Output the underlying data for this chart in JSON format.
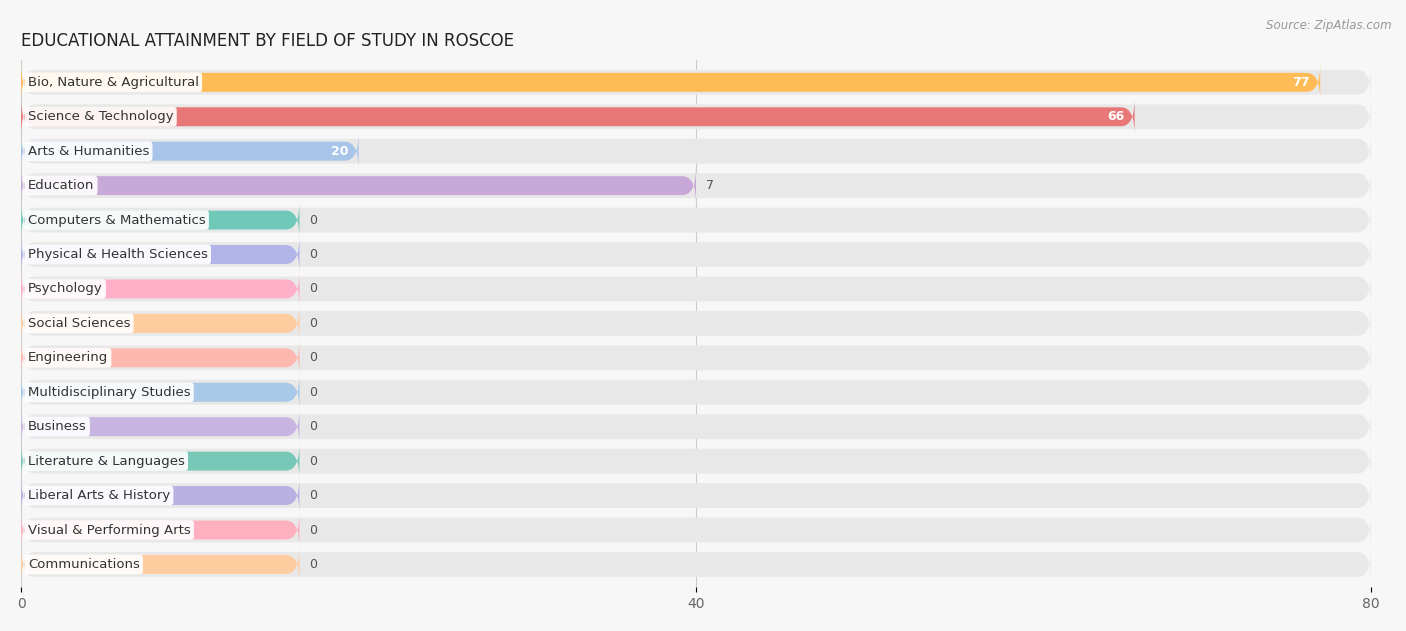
{
  "title": "EDUCATIONAL ATTAINMENT BY FIELD OF STUDY IN ROSCOE",
  "source": "Source: ZipAtlas.com",
  "categories": [
    "Bio, Nature & Agricultural",
    "Science & Technology",
    "Arts & Humanities",
    "Education",
    "Computers & Mathematics",
    "Physical & Health Sciences",
    "Psychology",
    "Social Sciences",
    "Engineering",
    "Multidisciplinary Studies",
    "Business",
    "Literature & Languages",
    "Liberal Arts & History",
    "Visual & Performing Arts",
    "Communications"
  ],
  "values": [
    77,
    66,
    20,
    7,
    0,
    0,
    0,
    0,
    0,
    0,
    0,
    0,
    0,
    0,
    0
  ],
  "bar_colors": [
    "#FFBB55",
    "#E87878",
    "#A8C4E8",
    "#C8A8D8",
    "#70C8B8",
    "#B0B4E8",
    "#FFB0C8",
    "#FFCCA0",
    "#FFB8B0",
    "#A8C8E8",
    "#C8B4E0",
    "#78C8B8",
    "#B8B0E0",
    "#FFB0C0",
    "#FFCCA0"
  ],
  "xlim": [
    0,
    80
  ],
  "xticks": [
    0,
    40,
    80
  ],
  "bg_color": "#f7f7f7",
  "bar_bg_color": "#e8e8e8",
  "title_fontsize": 12,
  "label_fontsize": 9.5,
  "value_fontsize": 9
}
